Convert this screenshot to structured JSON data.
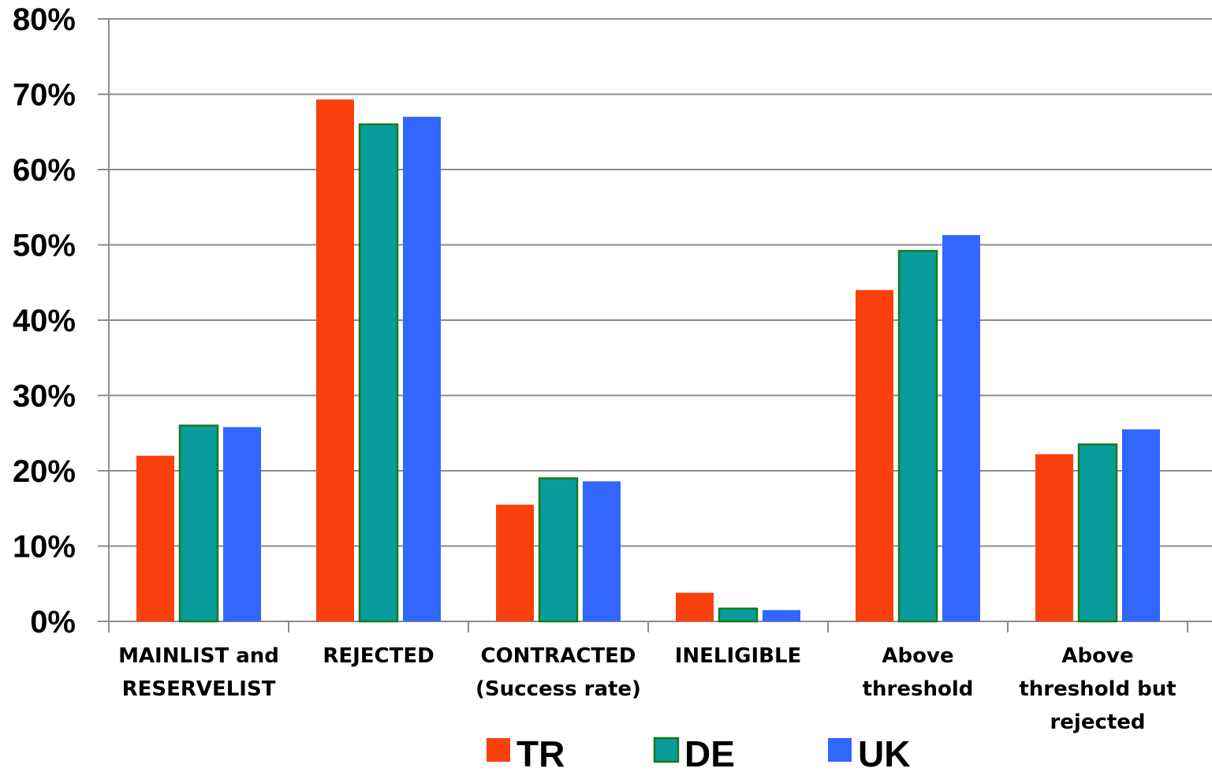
{
  "chart_data": {
    "type": "bar",
    "title": "",
    "xlabel": "",
    "ylabel": "",
    "categories": [
      [
        "MAINLIST and",
        "RESERVELIST"
      ],
      [
        "REJECTED"
      ],
      [
        "CONTRACTED",
        "(Success rate)"
      ],
      [
        "INELIGIBLE"
      ],
      [
        "Above",
        "threshold"
      ],
      [
        "Above",
        "threshold but",
        "rejected"
      ]
    ],
    "series": [
      {
        "name": "TR",
        "color": "#fa410d",
        "values": [
          22.0,
          69.3,
          15.5,
          3.8,
          44.0,
          22.2
        ]
      },
      {
        "name": "DE",
        "color": "#089c9c",
        "outline": "#1a7a1a",
        "values": [
          26.0,
          66.0,
          19.0,
          1.7,
          49.2,
          23.5
        ]
      },
      {
        "name": "UK",
        "color": "#3366ff",
        "values": [
          25.8,
          67.0,
          18.6,
          1.5,
          51.3,
          25.5
        ]
      }
    ],
    "ylim": [
      0,
      80
    ],
    "yticks": [
      0,
      10,
      20,
      30,
      40,
      50,
      60,
      70,
      80
    ],
    "ytick_labels": [
      "0%",
      "10%",
      "20%",
      "30%",
      "40%",
      "50%",
      "60%",
      "70%",
      "80%"
    ],
    "grid": true,
    "legend_position": "bottom-center"
  }
}
